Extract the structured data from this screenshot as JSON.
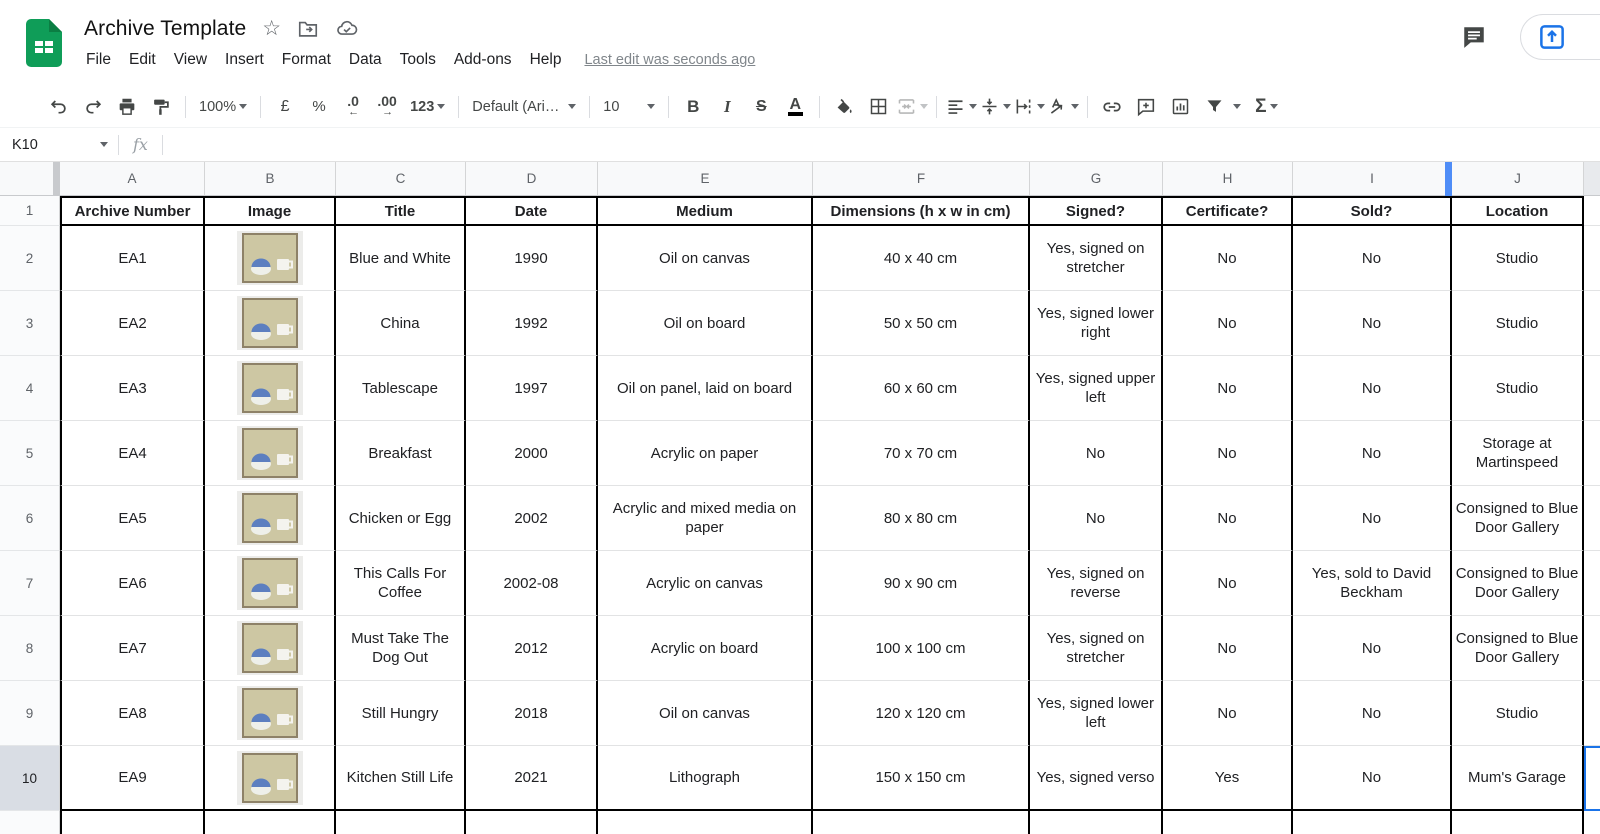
{
  "header": {
    "title": "Archive Template",
    "menus": [
      "File",
      "Edit",
      "View",
      "Insert",
      "Format",
      "Data",
      "Tools",
      "Add-ons",
      "Help"
    ],
    "last_edit": "Last edit was seconds ago"
  },
  "toolbar": {
    "zoom": "100%",
    "currency": "£",
    "percent": "%",
    "decrease_decimal": ".0",
    "decrease_decimal_arrow": "←",
    "increase_decimal": ".00",
    "increase_decimal_arrow": "→",
    "more_formats": "123",
    "font": "Default (Ari…",
    "font_size": "10",
    "bold": "B",
    "italic": "I",
    "strikethrough": "S",
    "text_color": "A",
    "functions": "Σ"
  },
  "formula_bar": {
    "name_box": "K10",
    "fx_label": "fx",
    "formula": ""
  },
  "grid": {
    "visible_columns": [
      "A",
      "B",
      "C",
      "D",
      "E",
      "F",
      "G",
      "H",
      "I",
      "J"
    ],
    "partial_column": "K",
    "selected_cell": "K10",
    "header_row_number": "1",
    "col_headers": [
      "Archive Number",
      "Image",
      "Title",
      "Date",
      "Medium",
      "Dimensions (h x w in cm)",
      "Signed?",
      "Certificate?",
      "Sold?",
      "Location"
    ],
    "image_alt": "still-life painting thumbnail",
    "rows": [
      {
        "n": "2",
        "archive": "EA1",
        "title": "Blue and White",
        "date": "1990",
        "medium": "Oil on canvas",
        "dimensions": "40 x 40 cm",
        "signed": "Yes, signed on stretcher",
        "certificate": "No",
        "sold": "No",
        "location": "Studio"
      },
      {
        "n": "3",
        "archive": "EA2",
        "title": "China",
        "date": "1992",
        "medium": "Oil on board",
        "dimensions": "50 x 50 cm",
        "signed": "Yes, signed lower right",
        "certificate": "No",
        "sold": "No",
        "location": "Studio"
      },
      {
        "n": "4",
        "archive": "EA3",
        "title": "Tablescape",
        "date": "1997",
        "medium": "Oil on panel, laid on board",
        "dimensions": "60 x 60 cm",
        "signed": "Yes, signed upper left",
        "certificate": "No",
        "sold": "No",
        "location": "Studio"
      },
      {
        "n": "5",
        "archive": "EA4",
        "title": "Breakfast",
        "date": "2000",
        "medium": "Acrylic on paper",
        "dimensions": "70 x 70 cm",
        "signed": "No",
        "certificate": "No",
        "sold": "No",
        "location": "Storage at Martinspeed"
      },
      {
        "n": "6",
        "archive": "EA5",
        "title": "Chicken or Egg",
        "date": "2002",
        "medium": "Acrylic and mixed media on paper",
        "dimensions": "80 x 80 cm",
        "signed": "No",
        "certificate": "No",
        "sold": "No",
        "location": "Consigned to Blue Door Gallery"
      },
      {
        "n": "7",
        "archive": "EA6",
        "title": "This Calls For Coffee",
        "date": "2002-08",
        "medium": "Acrylic on canvas",
        "dimensions": "90 x 90 cm",
        "signed": "Yes, signed on reverse",
        "certificate": "No",
        "sold": "Yes, sold to David Beckham",
        "location": "Consigned to Blue Door Gallery"
      },
      {
        "n": "8",
        "archive": "EA7",
        "title": "Must Take The Dog Out",
        "date": "2012",
        "medium": "Acrylic on board",
        "dimensions": "100 x 100 cm",
        "signed": "Yes, signed on stretcher",
        "certificate": "No",
        "sold": "No",
        "location": "Consigned to Blue Door Gallery"
      },
      {
        "n": "9",
        "archive": "EA8",
        "title": "Still Hungry",
        "date": "2018",
        "medium": "Oil on canvas",
        "dimensions": "120 x 120 cm",
        "signed": "Yes, signed lower left",
        "certificate": "No",
        "sold": "No",
        "location": "Studio"
      },
      {
        "n": "10",
        "archive": "EA9",
        "title": "Kitchen Still Life",
        "date": "2021",
        "medium": "Lithograph",
        "dimensions": "150 x 150 cm",
        "signed": "Yes, signed verso",
        "certificate": "Yes",
        "sold": "No",
        "location": "Mum's Garage"
      }
    ]
  },
  "colors": {
    "sheets_green": "#0f9d58",
    "sheets_green_dark": "#0b7e43",
    "selection_blue": "#1a73e8",
    "resize_indicator_blue": "#4f8df7",
    "grid_black_border": "#000000",
    "grid_grey_line": "#e2e3e4",
    "header_strip_bg": "#f8f9fa",
    "selected_rowhead_bg": "#d9dde4",
    "icon_grey": "#444746",
    "painting_canvas": "#cdc7a3",
    "painting_frame": "#8e8268",
    "painting_bowl_blue": "#5c7fc0"
  }
}
